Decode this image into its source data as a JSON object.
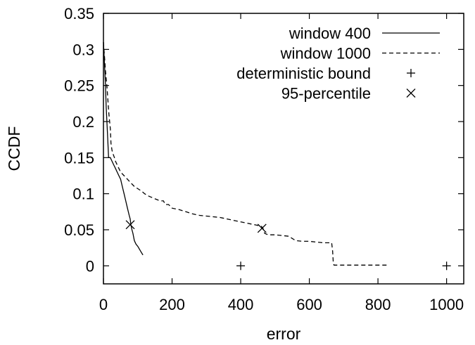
{
  "chart_data": {
    "type": "line",
    "title": "",
    "xlabel": "error",
    "ylabel": "CCDF",
    "xlim": [
      0,
      1050
    ],
    "ylim": [
      -0.025,
      0.35
    ],
    "xticks": [
      0,
      200,
      400,
      600,
      800,
      1000
    ],
    "yticks": [
      0,
      0.05,
      0.1,
      0.15,
      0.2,
      0.25,
      0.3,
      0.35
    ],
    "xtick_labels": [
      "0",
      "200",
      "400",
      "600",
      "800",
      "1000"
    ],
    "ytick_labels": [
      "0",
      "0.05",
      "0.1",
      "0.15",
      "0.2",
      "0.25",
      "0.3",
      "0.35"
    ],
    "grid": false,
    "legend_position": "top-right",
    "series": [
      {
        "name": "window 400",
        "style": "solid",
        "color": "#000000",
        "x": [
          0,
          2,
          4,
          6,
          8,
          10,
          12,
          15,
          18,
          20,
          22,
          25,
          30,
          35,
          40,
          45,
          50,
          55,
          60,
          65,
          70,
          75,
          78,
          80,
          83,
          86,
          88,
          90,
          95,
          100,
          105,
          110,
          115
        ],
        "y": [
          0.31,
          0.29,
          0.27,
          0.25,
          0.22,
          0.2,
          0.18,
          0.15,
          0.15,
          0.15,
          0.148,
          0.145,
          0.14,
          0.135,
          0.13,
          0.125,
          0.12,
          0.11,
          0.1,
          0.09,
          0.08,
          0.07,
          0.065,
          0.057,
          0.05,
          0.045,
          0.04,
          0.035,
          0.03,
          0.027,
          0.023,
          0.019,
          0.015
        ]
      },
      {
        "name": "window 1000",
        "style": "dashed",
        "color": "#000000",
        "x": [
          0,
          3,
          6,
          10,
          13,
          16,
          20,
          22,
          25,
          28,
          32,
          35,
          40,
          45,
          50,
          60,
          70,
          80,
          90,
          100,
          110,
          120,
          130,
          140,
          150,
          160,
          170,
          175,
          180,
          190,
          200,
          220,
          240,
          260,
          280,
          300,
          320,
          340,
          360,
          380,
          400,
          420,
          440,
          460,
          465,
          470,
          480,
          500,
          520,
          540,
          560,
          580,
          600,
          620,
          640,
          650,
          660,
          665,
          668,
          670,
          672,
          680,
          700,
          750,
          800,
          830
        ],
        "y": [
          0.31,
          0.29,
          0.27,
          0.25,
          0.23,
          0.21,
          0.19,
          0.17,
          0.16,
          0.155,
          0.15,
          0.145,
          0.14,
          0.135,
          0.13,
          0.125,
          0.12,
          0.115,
          0.11,
          0.107,
          0.104,
          0.1,
          0.097,
          0.095,
          0.093,
          0.091,
          0.09,
          0.09,
          0.085,
          0.085,
          0.08,
          0.078,
          0.075,
          0.072,
          0.07,
          0.069,
          0.068,
          0.067,
          0.065,
          0.063,
          0.061,
          0.059,
          0.057,
          0.055,
          0.052,
          0.045,
          0.043,
          0.043,
          0.042,
          0.041,
          0.035,
          0.034,
          0.034,
          0.033,
          0.032,
          0.032,
          0.032,
          0.032,
          0.02,
          0.003,
          0.001,
          0.001,
          0.001,
          0.001,
          0.001,
          0.001
        ]
      }
    ],
    "markers": [
      {
        "name": "deterministic bound",
        "symbol": "plus",
        "points": [
          [
            400,
            0
          ],
          [
            1000,
            0
          ]
        ]
      },
      {
        "name": "95-percentile",
        "symbol": "cross",
        "points": [
          [
            78,
            0.057
          ],
          [
            462,
            0.052
          ]
        ]
      }
    ]
  }
}
